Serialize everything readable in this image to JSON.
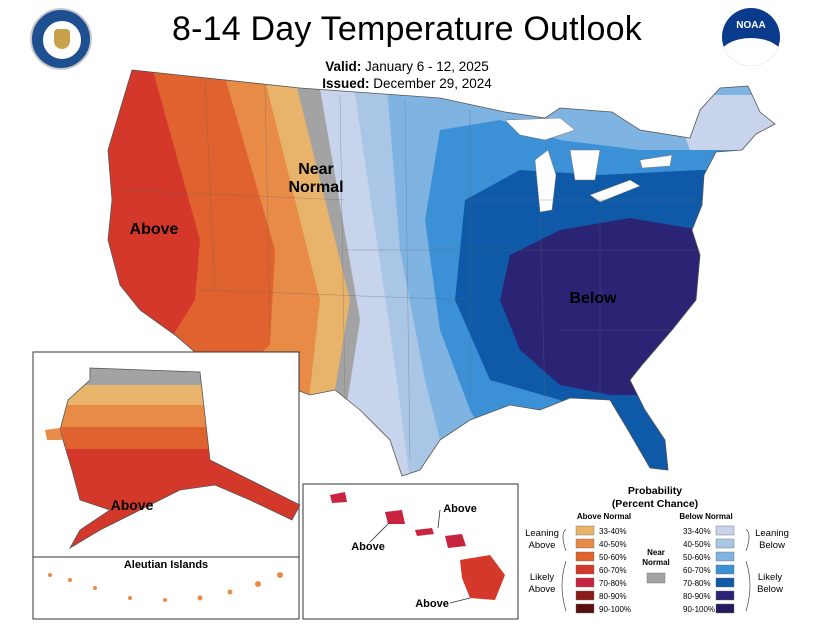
{
  "header": {
    "title": "8-14 Day Temperature Outlook",
    "valid_label": "Valid:",
    "valid_value": "January 6 - 12, 2025",
    "issued_label": "Issued:",
    "issued_value": "December 29, 2024",
    "logo_right_text": "NOAA"
  },
  "map": {
    "labels": {
      "near_normal_1": "Near",
      "near_normal_2": "Normal",
      "above_west": "Above",
      "below_east": "Below",
      "above_alaska": "Above",
      "aleutian": "Aleutian Islands",
      "hawaii_above_1": "Above",
      "hawaii_above_2": "Above",
      "hawaii_above_3": "Above"
    },
    "colors": {
      "a33": "#e8b46b",
      "a40": "#e88b46",
      "a50": "#e0622e",
      "a60": "#d4382a",
      "a70": "#c8243f",
      "a80": "#8b1a1a",
      "a90": "#5a0e0e",
      "near": "#a3a3a3",
      "b33": "#c8d4ec",
      "b40": "#a9c6e6",
      "b50": "#7fb4e2",
      "b60": "#3c90d6",
      "b70": "#0f5aa8",
      "b80": "#2b2474",
      "b90": "#241a5e"
    }
  },
  "legend": {
    "title_1": "Probability",
    "title_2": "(Percent Chance)",
    "above_header": "Above Normal",
    "below_header": "Below Normal",
    "near_label_1": "Near",
    "near_label_2": "Normal",
    "leaning_above_1": "Leaning",
    "leaning_above_2": "Above",
    "likely_above_1": "Likely",
    "likely_above_2": "Above",
    "leaning_below_1": "Leaning",
    "leaning_below_2": "Below",
    "likely_below_1": "Likely",
    "likely_below_2": "Below",
    "above_ranges": [
      "33-40%",
      "40-50%",
      "50-60%",
      "60-70%",
      "70-80%",
      "80-90%",
      "90-100%"
    ],
    "below_ranges": [
      "33-40%",
      "40-50%",
      "50-60%",
      "60-70%",
      "70-80%",
      "80-90%",
      "90-100%"
    ]
  }
}
